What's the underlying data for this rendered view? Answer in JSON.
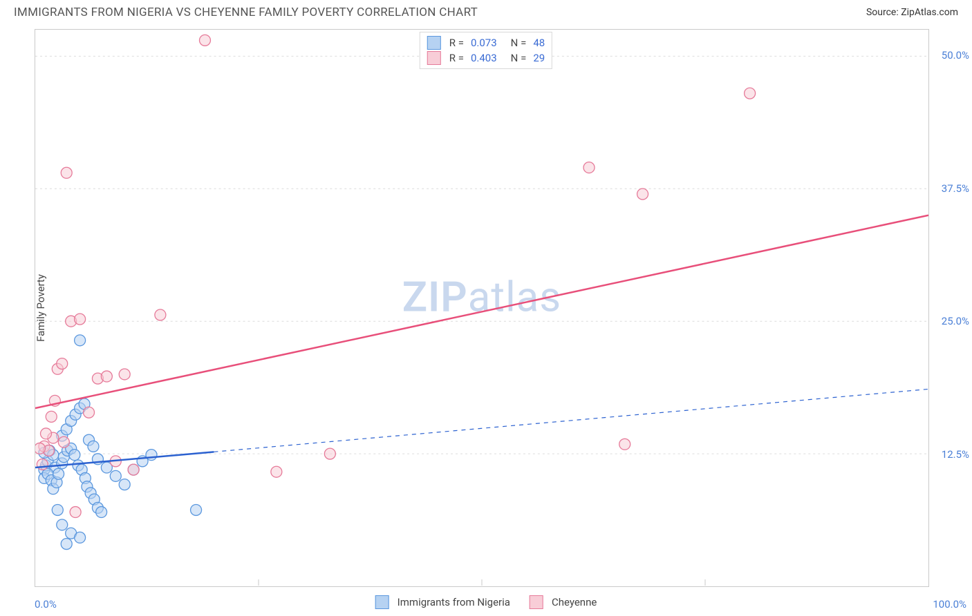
{
  "header": {
    "title": "IMMIGRANTS FROM NIGERIA VS CHEYENNE FAMILY POVERTY CORRELATION CHART",
    "source_prefix": "Source: ",
    "source_name": "ZipAtlas.com"
  },
  "watermark": {
    "left": "ZIP",
    "right": "atlas"
  },
  "chart": {
    "type": "scatter",
    "ylabel": "Family Poverty",
    "background_color": "#ffffff",
    "border_color": "#c9c9c9",
    "grid_color": "#dcdcdc",
    "axis_text_color": "#4a7fd6",
    "xlim": [
      0,
      100
    ],
    "ylim": [
      0,
      52.5
    ],
    "xticks": [
      0,
      25,
      50,
      75,
      100
    ],
    "xtick_labels": [
      "0.0%",
      "",
      "",
      "",
      "100.0%"
    ],
    "yticks": [
      12.5,
      25.0,
      37.5,
      50.0
    ],
    "ytick_labels": [
      "12.5%",
      "25.0%",
      "37.5%",
      "50.0%"
    ],
    "marker_radius": 8,
    "series": [
      {
        "name": "Immigrants from Nigeria",
        "legend_label": "Immigrants from Nigeria",
        "color_fill": "#b6d2f2",
        "color_stroke": "#5a97de",
        "fill_opacity": 0.55,
        "R": "0.073",
        "N": "48",
        "trend": {
          "y0": 11.2,
          "y100": 18.6,
          "solid_until_x": 20,
          "color": "#2b61d0",
          "width": 2.5,
          "dash": "6,6"
        },
        "points": [
          [
            1.0,
            11.0
          ],
          [
            1.2,
            11.4
          ],
          [
            1.4,
            11.8
          ],
          [
            1.0,
            12.6
          ],
          [
            1.6,
            12.8
          ],
          [
            2.0,
            12.4
          ],
          [
            2.2,
            11.2
          ],
          [
            1.0,
            10.2
          ],
          [
            1.4,
            10.6
          ],
          [
            1.8,
            10.0
          ],
          [
            2.0,
            9.2
          ],
          [
            2.4,
            9.8
          ],
          [
            2.6,
            10.6
          ],
          [
            3.0,
            11.6
          ],
          [
            3.2,
            12.2
          ],
          [
            3.6,
            12.8
          ],
          [
            4.0,
            13.0
          ],
          [
            4.4,
            12.4
          ],
          [
            4.8,
            11.4
          ],
          [
            5.2,
            11.0
          ],
          [
            5.6,
            10.2
          ],
          [
            5.8,
            9.4
          ],
          [
            6.2,
            8.8
          ],
          [
            6.6,
            8.2
          ],
          [
            7.0,
            7.4
          ],
          [
            7.4,
            7.0
          ],
          [
            3.0,
            14.2
          ],
          [
            3.5,
            14.8
          ],
          [
            4.0,
            15.6
          ],
          [
            4.5,
            16.2
          ],
          [
            5.0,
            16.8
          ],
          [
            5.5,
            17.2
          ],
          [
            6.0,
            13.8
          ],
          [
            6.5,
            13.2
          ],
          [
            7.0,
            12.0
          ],
          [
            8.0,
            11.2
          ],
          [
            9.0,
            10.4
          ],
          [
            10.0,
            9.6
          ],
          [
            11.0,
            11.0
          ],
          [
            12.0,
            11.8
          ],
          [
            13.0,
            12.4
          ],
          [
            5.0,
            23.2
          ],
          [
            2.5,
            7.2
          ],
          [
            3.0,
            5.8
          ],
          [
            4.0,
            5.0
          ],
          [
            18.0,
            7.2
          ],
          [
            5.0,
            4.6
          ],
          [
            3.5,
            4.0
          ]
        ]
      },
      {
        "name": "Cheyenne",
        "legend_label": "Cheyenne",
        "color_fill": "#f8cdd7",
        "color_stroke": "#e67a99",
        "fill_opacity": 0.55,
        "R": "0.403",
        "N": "29",
        "trend": {
          "y0": 16.8,
          "y100": 35.0,
          "solid_until_x": 100,
          "color": "#e84f7a",
          "width": 2.5,
          "dash": ""
        },
        "points": [
          [
            1.0,
            13.2
          ],
          [
            1.5,
            12.8
          ],
          [
            0.8,
            11.5
          ],
          [
            2.0,
            14.0
          ],
          [
            2.5,
            20.5
          ],
          [
            3.0,
            21.0
          ],
          [
            4.0,
            25.0
          ],
          [
            5.0,
            25.2
          ],
          [
            6.0,
            16.4
          ],
          [
            7.0,
            19.6
          ],
          [
            8.0,
            19.8
          ],
          [
            10.0,
            20.0
          ],
          [
            11.0,
            11.0
          ],
          [
            14.0,
            25.6
          ],
          [
            3.5,
            39.0
          ],
          [
            19.0,
            51.5
          ],
          [
            27.0,
            10.8
          ],
          [
            33.0,
            12.5
          ],
          [
            62.0,
            39.5
          ],
          [
            66.0,
            13.4
          ],
          [
            68.0,
            37.0
          ],
          [
            80.0,
            46.5
          ],
          [
            4.5,
            7.0
          ],
          [
            0.5,
            13.0
          ],
          [
            1.2,
            14.4
          ],
          [
            1.8,
            16.0
          ],
          [
            2.2,
            17.5
          ],
          [
            3.2,
            13.6
          ],
          [
            9.0,
            11.8
          ]
        ]
      }
    ],
    "legend_top": {
      "R_label": "R =",
      "N_label": "N ="
    }
  }
}
